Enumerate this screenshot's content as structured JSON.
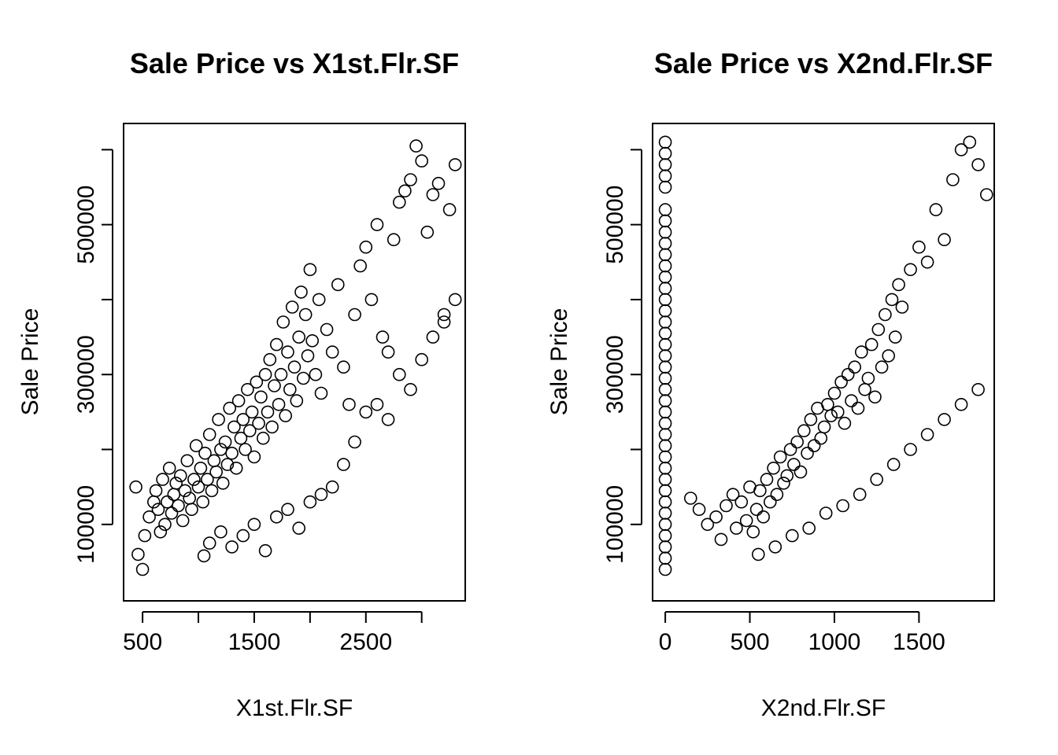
{
  "chart_data": [
    {
      "type": "scatter",
      "title": "Sale Price vs X1st.Flr.SF",
      "xlabel": "X1st.Flr.SF",
      "ylabel": "Sale Price",
      "xlim": [
        330,
        3390
      ],
      "ylim": [
        -2000,
        635000
      ],
      "x_ticks": [
        500,
        1000,
        1500,
        2000,
        2500,
        3000
      ],
      "x_tick_labels": [
        "500",
        "",
        "1500",
        "",
        "2500",
        ""
      ],
      "y_ticks": [
        100000,
        200000,
        300000,
        400000,
        500000,
        600000
      ],
      "y_tick_labels": [
        "100000",
        "",
        "300000",
        "",
        "500000",
        ""
      ],
      "series": [
        {
          "points": [
            [
              440,
              150000
            ],
            [
              460,
              60000
            ],
            [
              500,
              40000
            ],
            [
              520,
              85000
            ],
            [
              560,
              110000
            ],
            [
              600,
              130000
            ],
            [
              620,
              145000
            ],
            [
              640,
              120000
            ],
            [
              660,
              90000
            ],
            [
              680,
              160000
            ],
            [
              700,
              100000
            ],
            [
              720,
              130000
            ],
            [
              740,
              175000
            ],
            [
              760,
              115000
            ],
            [
              780,
              140000
            ],
            [
              800,
              155000
            ],
            [
              820,
              125000
            ],
            [
              840,
              165000
            ],
            [
              860,
              105000
            ],
            [
              880,
              145000
            ],
            [
              900,
              185000
            ],
            [
              920,
              135000
            ],
            [
              940,
              120000
            ],
            [
              960,
              160000
            ],
            [
              980,
              205000
            ],
            [
              1000,
              150000
            ],
            [
              1020,
              175000
            ],
            [
              1040,
              130000
            ],
            [
              1060,
              195000
            ],
            [
              1080,
              160000
            ],
            [
              1100,
              220000
            ],
            [
              1120,
              145000
            ],
            [
              1140,
              185000
            ],
            [
              1160,
              170000
            ],
            [
              1180,
              240000
            ],
            [
              1200,
              200000
            ],
            [
              1220,
              155000
            ],
            [
              1240,
              210000
            ],
            [
              1260,
              180000
            ],
            [
              1280,
              255000
            ],
            [
              1300,
              195000
            ],
            [
              1320,
              230000
            ],
            [
              1340,
              175000
            ],
            [
              1360,
              265000
            ],
            [
              1380,
              215000
            ],
            [
              1400,
              240000
            ],
            [
              1420,
              200000
            ],
            [
              1440,
              280000
            ],
            [
              1460,
              225000
            ],
            [
              1480,
              250000
            ],
            [
              1500,
              190000
            ],
            [
              1520,
              290000
            ],
            [
              1540,
              235000
            ],
            [
              1560,
              270000
            ],
            [
              1580,
              215000
            ],
            [
              1600,
              300000
            ],
            [
              1620,
              250000
            ],
            [
              1640,
              320000
            ],
            [
              1660,
              230000
            ],
            [
              1680,
              285000
            ],
            [
              1700,
              340000
            ],
            [
              1720,
              260000
            ],
            [
              1740,
              300000
            ],
            [
              1760,
              370000
            ],
            [
              1780,
              245000
            ],
            [
              1800,
              330000
            ],
            [
              1820,
              280000
            ],
            [
              1840,
              390000
            ],
            [
              1860,
              310000
            ],
            [
              1880,
              265000
            ],
            [
              1900,
              350000
            ],
            [
              1920,
              410000
            ],
            [
              1940,
              295000
            ],
            [
              1960,
              380000
            ],
            [
              1980,
              325000
            ],
            [
              2000,
              440000
            ],
            [
              2020,
              345000
            ],
            [
              2050,
              300000
            ],
            [
              2080,
              400000
            ],
            [
              2100,
              275000
            ],
            [
              2150,
              360000
            ],
            [
              2200,
              330000
            ],
            [
              2250,
              420000
            ],
            [
              2300,
              310000
            ],
            [
              2350,
              260000
            ],
            [
              2400,
              380000
            ],
            [
              2450,
              445000
            ],
            [
              2500,
              470000
            ],
            [
              2550,
              400000
            ],
            [
              2600,
              500000
            ],
            [
              2650,
              350000
            ],
            [
              2700,
              330000
            ],
            [
              2750,
              480000
            ],
            [
              2800,
              530000
            ],
            [
              2850,
              545000
            ],
            [
              2900,
              560000
            ],
            [
              2950,
              605000
            ],
            [
              3000,
              585000
            ],
            [
              3050,
              490000
            ],
            [
              3100,
              540000
            ],
            [
              3150,
              555000
            ],
            [
              3200,
              370000
            ],
            [
              3250,
              520000
            ],
            [
              3300,
              580000
            ],
            [
              1050,
              58000
            ],
            [
              1100,
              75000
            ],
            [
              1200,
              90000
            ],
            [
              1300,
              70000
            ],
            [
              1400,
              85000
            ],
            [
              1500,
              100000
            ],
            [
              1600,
              65000
            ],
            [
              1700,
              110000
            ],
            [
              1800,
              120000
            ],
            [
              1900,
              95000
            ],
            [
              2000,
              130000
            ],
            [
              2100,
              140000
            ],
            [
              2200,
              150000
            ],
            [
              2300,
              180000
            ],
            [
              2400,
              210000
            ],
            [
              2500,
              250000
            ],
            [
              2600,
              260000
            ],
            [
              2700,
              240000
            ],
            [
              2800,
              300000
            ],
            [
              2900,
              280000
            ],
            [
              3000,
              320000
            ],
            [
              3100,
              350000
            ],
            [
              3200,
              380000
            ],
            [
              3300,
              400000
            ]
          ]
        }
      ]
    },
    {
      "type": "scatter",
      "title": "Sale Price vs X2nd.Flr.SF",
      "xlabel": "X2nd.Flr.SF",
      "ylabel": "Sale Price",
      "xlim": [
        -75,
        1945
      ],
      "ylim": [
        -2000,
        635000
      ],
      "x_ticks": [
        0,
        500,
        1000,
        1500
      ],
      "x_tick_labels": [
        "0",
        "500",
        "1000",
        "1500"
      ],
      "y_ticks": [
        100000,
        200000,
        300000,
        400000,
        500000,
        600000
      ],
      "y_tick_labels": [
        "100000",
        "",
        "300000",
        "",
        "500000",
        ""
      ],
      "series": [
        {
          "points": [
            [
              0,
              40000
            ],
            [
              0,
              55000
            ],
            [
              0,
              70000
            ],
            [
              0,
              85000
            ],
            [
              0,
              100000
            ],
            [
              0,
              115000
            ],
            [
              0,
              130000
            ],
            [
              0,
              145000
            ],
            [
              0,
              160000
            ],
            [
              0,
              175000
            ],
            [
              0,
              190000
            ],
            [
              0,
              205000
            ],
            [
              0,
              220000
            ],
            [
              0,
              235000
            ],
            [
              0,
              250000
            ],
            [
              0,
              265000
            ],
            [
              0,
              280000
            ],
            [
              0,
              295000
            ],
            [
              0,
              310000
            ],
            [
              0,
              325000
            ],
            [
              0,
              340000
            ],
            [
              0,
              355000
            ],
            [
              0,
              370000
            ],
            [
              0,
              385000
            ],
            [
              0,
              400000
            ],
            [
              0,
              415000
            ],
            [
              0,
              430000
            ],
            [
              0,
              445000
            ],
            [
              0,
              460000
            ],
            [
              0,
              475000
            ],
            [
              0,
              490000
            ],
            [
              0,
              505000
            ],
            [
              0,
              520000
            ],
            [
              0,
              550000
            ],
            [
              0,
              565000
            ],
            [
              0,
              580000
            ],
            [
              0,
              595000
            ],
            [
              0,
              610000
            ],
            [
              150,
              135000
            ],
            [
              200,
              120000
            ],
            [
              250,
              100000
            ],
            [
              300,
              110000
            ],
            [
              330,
              80000
            ],
            [
              360,
              125000
            ],
            [
              400,
              140000
            ],
            [
              420,
              95000
            ],
            [
              450,
              130000
            ],
            [
              480,
              105000
            ],
            [
              500,
              150000
            ],
            [
              520,
              90000
            ],
            [
              540,
              120000
            ],
            [
              560,
              145000
            ],
            [
              580,
              110000
            ],
            [
              600,
              160000
            ],
            [
              620,
              130000
            ],
            [
              640,
              175000
            ],
            [
              660,
              140000
            ],
            [
              680,
              190000
            ],
            [
              700,
              155000
            ],
            [
              720,
              165000
            ],
            [
              740,
              200000
            ],
            [
              760,
              180000
            ],
            [
              780,
              210000
            ],
            [
              800,
              170000
            ],
            [
              820,
              225000
            ],
            [
              840,
              195000
            ],
            [
              860,
              240000
            ],
            [
              880,
              205000
            ],
            [
              900,
              255000
            ],
            [
              920,
              215000
            ],
            [
              940,
              230000
            ],
            [
              960,
              260000
            ],
            [
              980,
              245000
            ],
            [
              1000,
              275000
            ],
            [
              1020,
              250000
            ],
            [
              1040,
              290000
            ],
            [
              1060,
              235000
            ],
            [
              1080,
              300000
            ],
            [
              1100,
              265000
            ],
            [
              1120,
              310000
            ],
            [
              1140,
              255000
            ],
            [
              1160,
              330000
            ],
            [
              1180,
              280000
            ],
            [
              1200,
              295000
            ],
            [
              1220,
              340000
            ],
            [
              1240,
              270000
            ],
            [
              1260,
              360000
            ],
            [
              1280,
              310000
            ],
            [
              1300,
              380000
            ],
            [
              1320,
              325000
            ],
            [
              1340,
              400000
            ],
            [
              1360,
              350000
            ],
            [
              1380,
              420000
            ],
            [
              1400,
              390000
            ],
            [
              1450,
              440000
            ],
            [
              1500,
              470000
            ],
            [
              1550,
              450000
            ],
            [
              1600,
              520000
            ],
            [
              1650,
              480000
            ],
            [
              1700,
              560000
            ],
            [
              1750,
              600000
            ],
            [
              1800,
              610000
            ],
            [
              1850,
              580000
            ],
            [
              1900,
              540000
            ],
            [
              550,
              60000
            ],
            [
              650,
              70000
            ],
            [
              750,
              85000
            ],
            [
              850,
              95000
            ],
            [
              950,
              115000
            ],
            [
              1050,
              125000
            ],
            [
              1150,
              140000
            ],
            [
              1250,
              160000
            ],
            [
              1350,
              180000
            ],
            [
              1450,
              200000
            ],
            [
              1550,
              220000
            ],
            [
              1650,
              240000
            ],
            [
              1750,
              260000
            ],
            [
              1850,
              280000
            ]
          ]
        }
      ]
    }
  ]
}
